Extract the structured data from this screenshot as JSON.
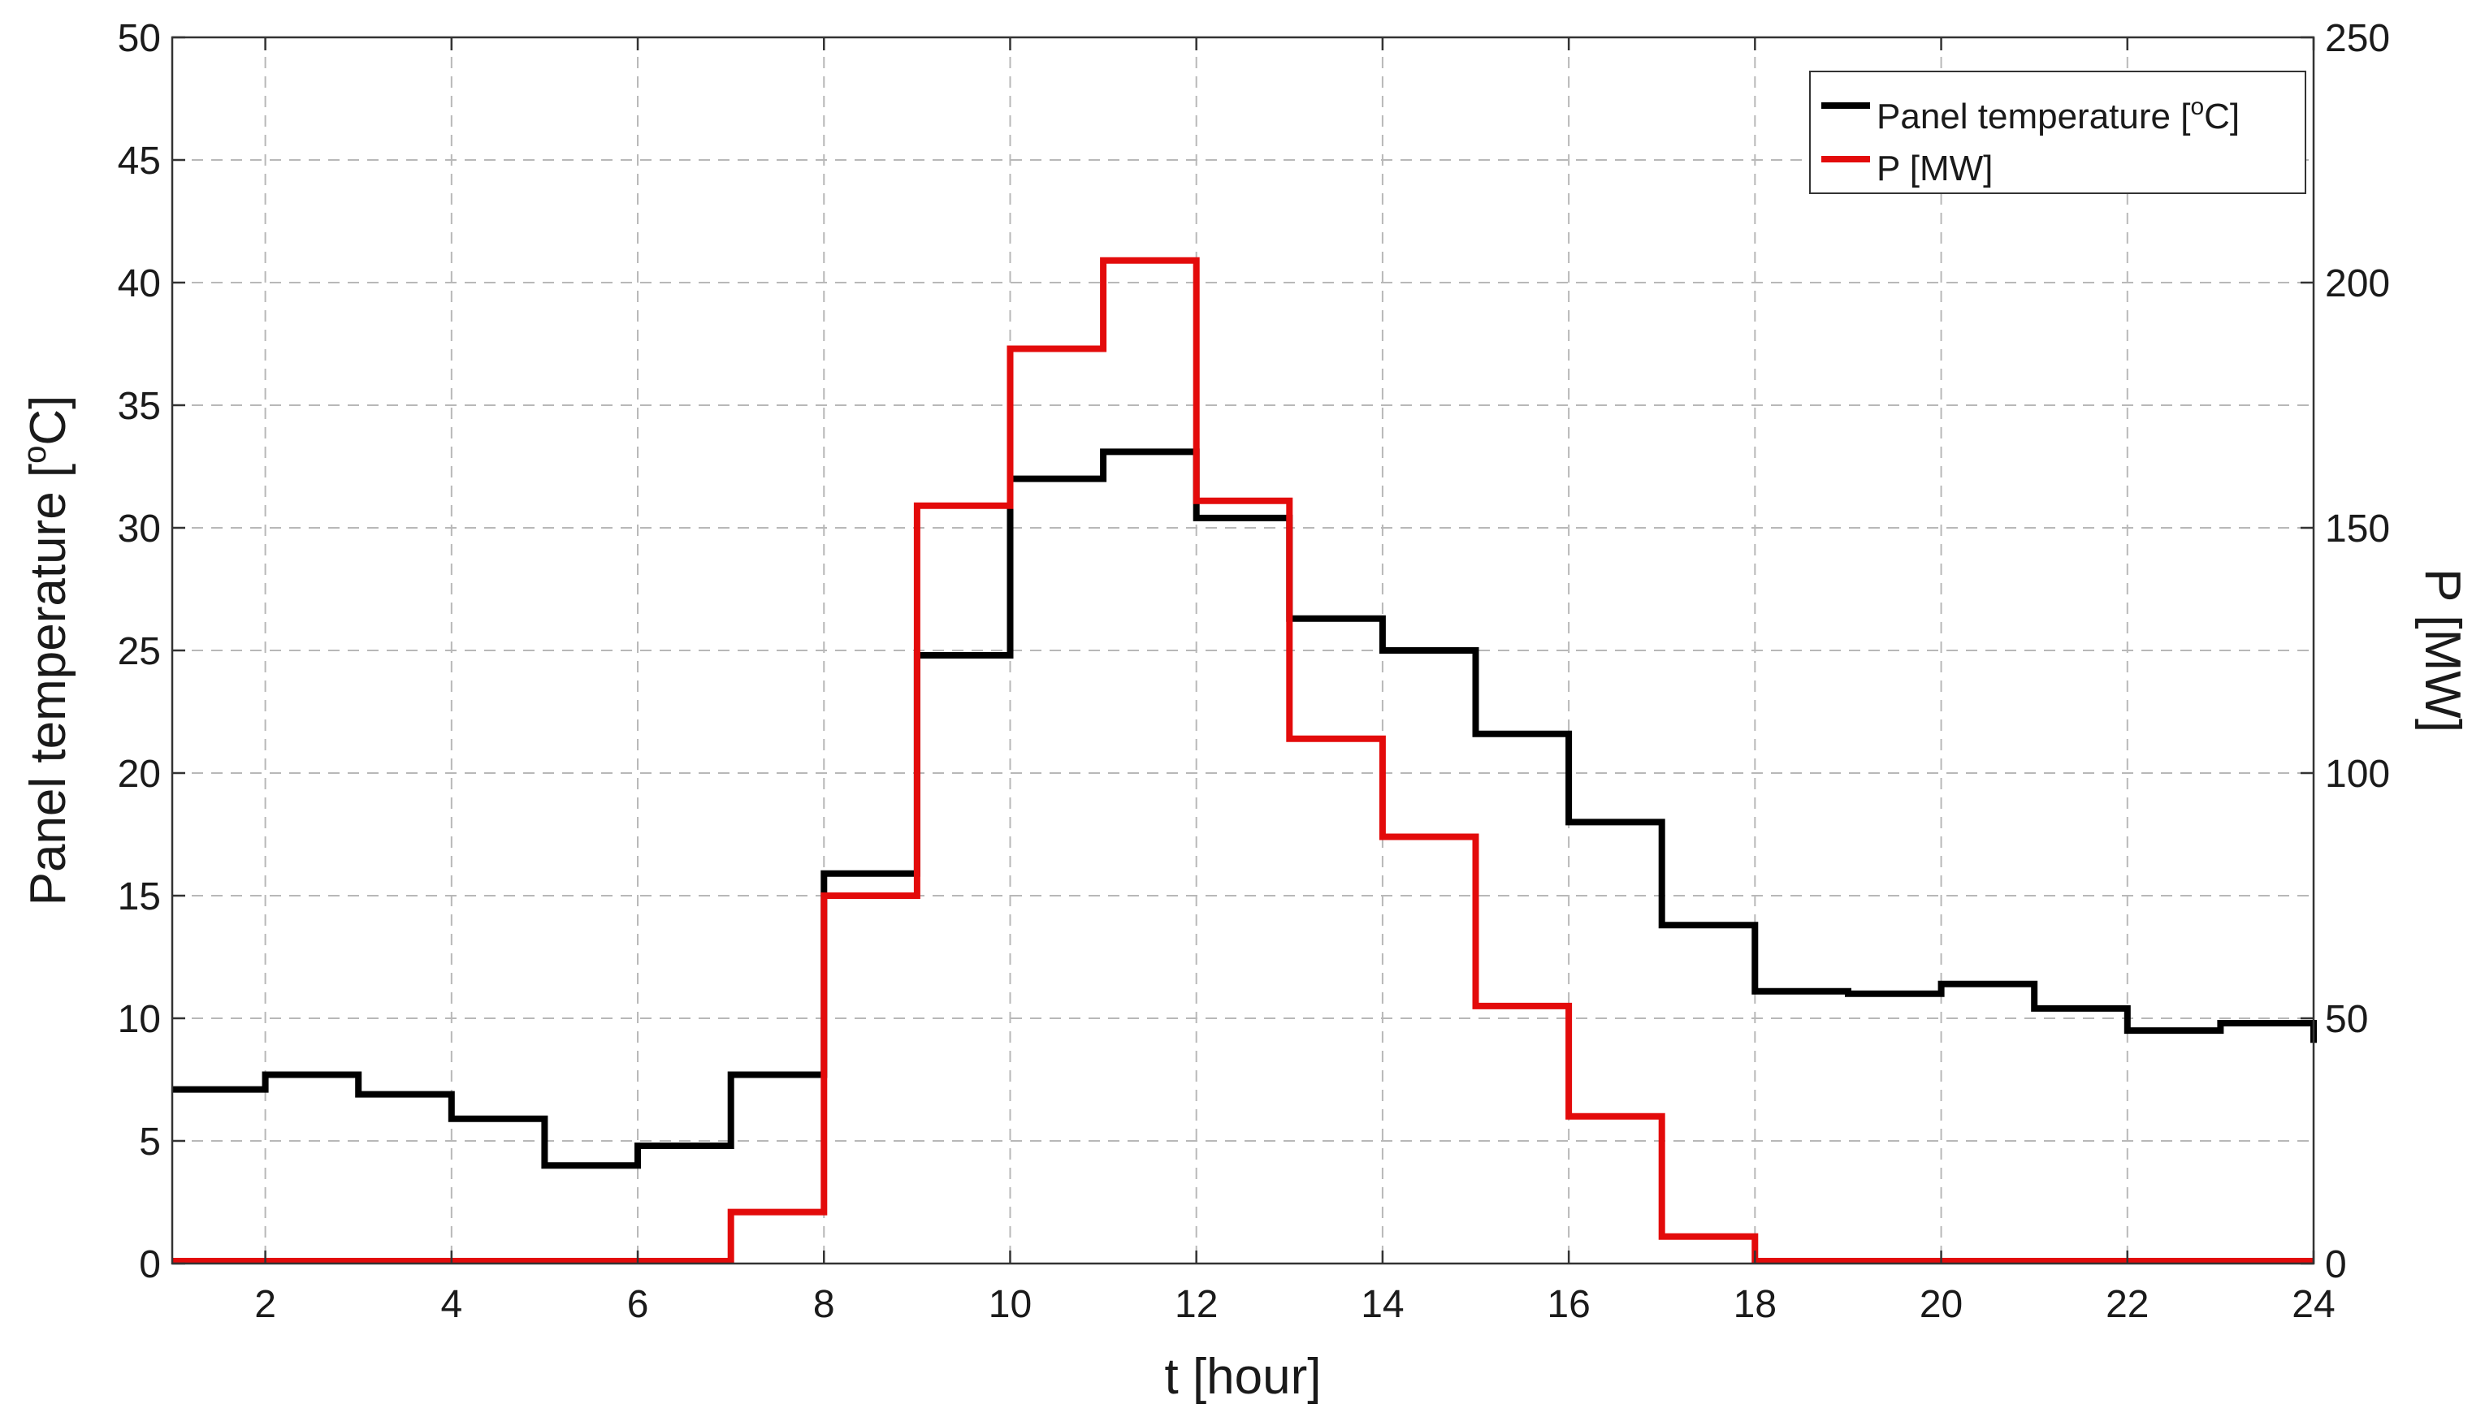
{
  "chart_data": {
    "type": "line",
    "step": true,
    "xlabel": "t [hour]",
    "ylabel_left": "Panel temperature [",
    "ylabel_left_sup": "o",
    "ylabel_left_end": "C]",
    "ylabel_right": "P [MW]",
    "xlim": [
      1,
      24
    ],
    "ylim_left": [
      0,
      50
    ],
    "ylim_right": [
      0,
      250
    ],
    "x_ticks": [
      2,
      4,
      6,
      8,
      10,
      12,
      14,
      16,
      18,
      20,
      22,
      24
    ],
    "y_left_ticks": [
      0,
      5,
      10,
      15,
      20,
      25,
      30,
      35,
      40,
      45,
      50
    ],
    "y_right_ticks": [
      0,
      50,
      100,
      150,
      200,
      250
    ],
    "grid": true,
    "legend_position": "top-right",
    "x": [
      1,
      2,
      3,
      4,
      5,
      6,
      7,
      8,
      9,
      10,
      11,
      12,
      13,
      14,
      15,
      16,
      17,
      18,
      19,
      20,
      21,
      22,
      23,
      24
    ],
    "series": [
      {
        "name": "Panel temperature [",
        "name_sup": "o",
        "name_end": "C]",
        "axis": "left",
        "color": "#000000",
        "values": [
          7.1,
          7.7,
          6.9,
          5.9,
          4.0,
          4.8,
          7.7,
          15.9,
          24.8,
          32.0,
          33.1,
          30.4,
          26.3,
          25.0,
          21.6,
          18.0,
          13.8,
          11.1,
          11.0,
          11.4,
          10.4,
          9.5,
          9.8,
          9.0
        ]
      },
      {
        "name": "P [MW]",
        "axis": "right",
        "color": "#e30b0b",
        "values": [
          0.5,
          0.5,
          0.5,
          0.5,
          0.5,
          0.5,
          10.5,
          75,
          154.5,
          186.5,
          204.5,
          155.5,
          107,
          87,
          52.5,
          30,
          5.5,
          0.5,
          0.5,
          0.5,
          0.5,
          0.5,
          0.5,
          0.5
        ]
      }
    ]
  }
}
